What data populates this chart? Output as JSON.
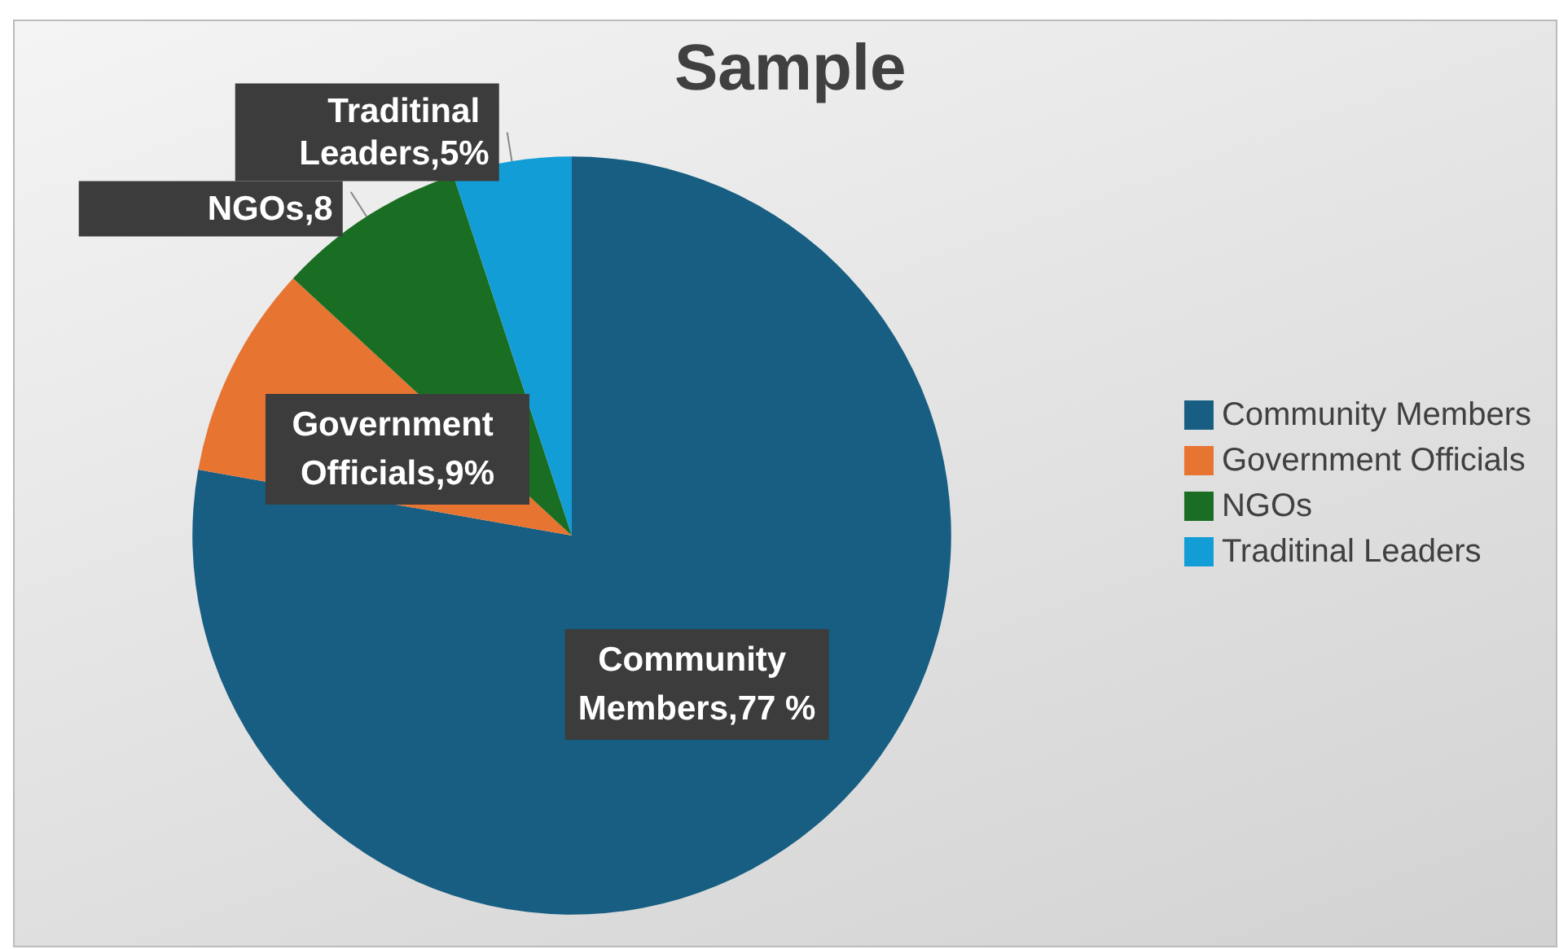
{
  "chart_data": {
    "type": "pie",
    "title": "Sample",
    "categories": [
      "Community Members",
      "Government Officials",
      "NGOs",
      "Traditinal Leaders"
    ],
    "values": [
      77,
      9,
      8,
      5
    ],
    "colors": [
      "#175e82",
      "#e87432",
      "#1a6e23",
      "#139dd6"
    ],
    "value_labels": [
      "Community Members,77 %",
      "Government Officials,9%",
      "NGOs,8",
      "Traditinal Leaders,5%"
    ],
    "legend": "right"
  }
}
